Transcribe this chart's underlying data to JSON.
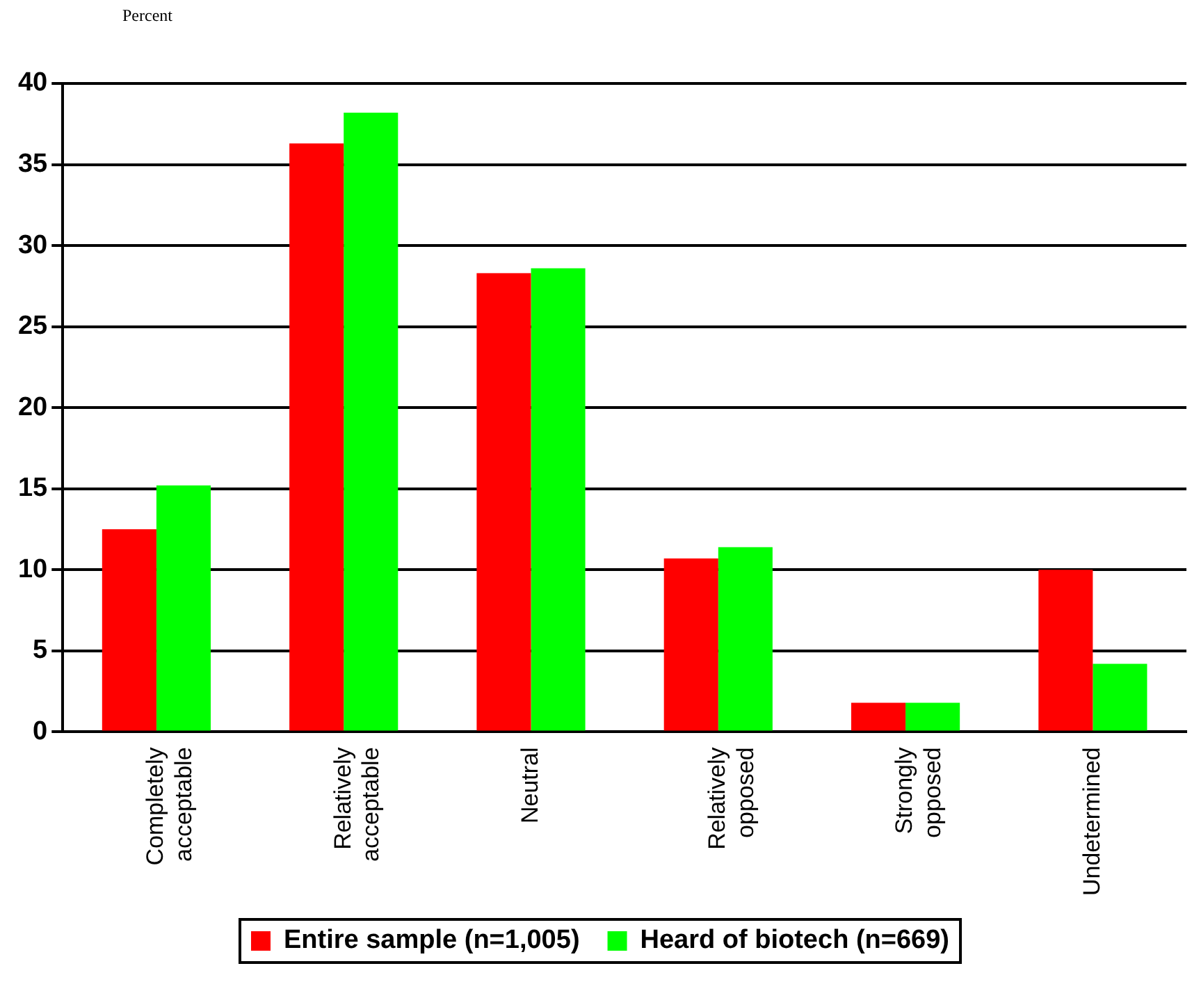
{
  "chart_data": {
    "type": "bar",
    "ylabel": "Percent",
    "categories": [
      "Completely acceptable",
      "Relatively acceptable",
      "Neutral",
      "Relatively opposed",
      "Strongly opposed",
      "Undetermined"
    ],
    "series": [
      {
        "name": "Entire sample (n=1,005)",
        "color": "#ff0000",
        "values": [
          12.5,
          36.3,
          28.3,
          10.7,
          1.8,
          10.0
        ]
      },
      {
        "name": "Heard of biotech (n=669)",
        "color": "#00ff00",
        "values": [
          15.2,
          38.2,
          28.6,
          11.4,
          1.8,
          4.2
        ]
      }
    ],
    "ylim": [
      0,
      40
    ],
    "yticks": [
      0,
      5,
      10,
      15,
      20,
      25,
      30,
      35,
      40
    ],
    "grid": "y",
    "legend": "bottom"
  }
}
